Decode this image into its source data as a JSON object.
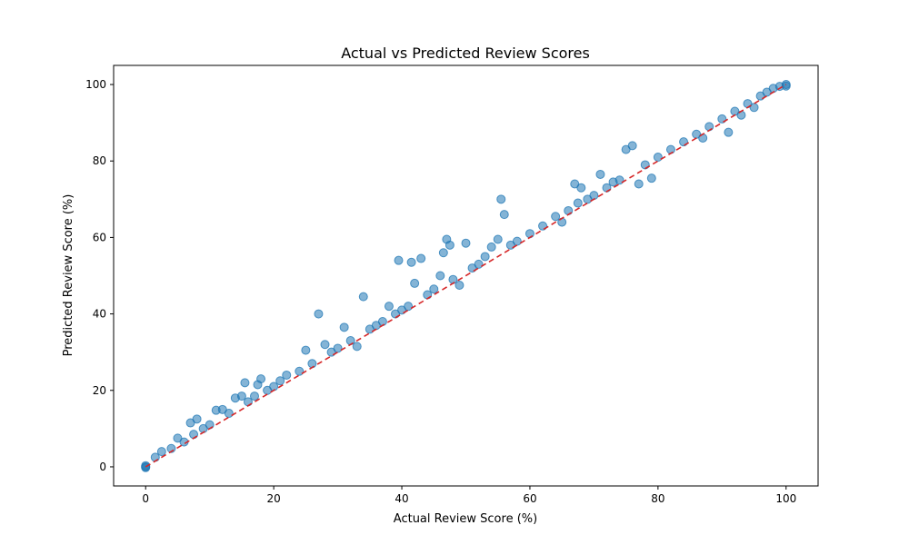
{
  "chart_data": {
    "type": "scatter",
    "title": "Actual vs Predicted Review Scores",
    "xlabel": "Actual Review Score (%)",
    "ylabel": "Predicted Review Score (%)",
    "xlim": [
      -5,
      105
    ],
    "ylim": [
      -5,
      105
    ],
    "xticks": [
      0,
      20,
      40,
      60,
      80,
      100
    ],
    "yticks": [
      0,
      20,
      40,
      60,
      80,
      100
    ],
    "grid": false,
    "legend": "none",
    "colors": {
      "points": "#1f77b4",
      "reference_line": "#d62728"
    },
    "reference_line": {
      "style": "dashed",
      "from": [
        0,
        0
      ],
      "to": [
        100,
        100
      ]
    },
    "series": [
      {
        "points": [
          [
            0,
            0
          ],
          [
            0,
            0.3
          ],
          [
            0,
            -0.2
          ],
          [
            1.5,
            2.5
          ],
          [
            2.5,
            4.0
          ],
          [
            4.0,
            4.8
          ],
          [
            5.0,
            7.5
          ],
          [
            6.0,
            6.5
          ],
          [
            7.0,
            11.5
          ],
          [
            7.5,
            8.5
          ],
          [
            8.0,
            12.5
          ],
          [
            9.0,
            10.0
          ],
          [
            10.0,
            11.0
          ],
          [
            11.0,
            14.8
          ],
          [
            12.0,
            15.0
          ],
          [
            13.0,
            14.0
          ],
          [
            14.0,
            18.0
          ],
          [
            15.0,
            18.5
          ],
          [
            15.5,
            22.0
          ],
          [
            16.0,
            17.0
          ],
          [
            17.0,
            18.5
          ],
          [
            17.5,
            21.5
          ],
          [
            18.0,
            23.0
          ],
          [
            19.0,
            20.0
          ],
          [
            20.0,
            21.0
          ],
          [
            21.0,
            22.5
          ],
          [
            22.0,
            24.0
          ],
          [
            24.0,
            25.0
          ],
          [
            25.0,
            30.5
          ],
          [
            26.0,
            27.0
          ],
          [
            27.0,
            40.0
          ],
          [
            28.0,
            32.0
          ],
          [
            29.0,
            30.0
          ],
          [
            30.0,
            31.0
          ],
          [
            31.0,
            36.5
          ],
          [
            32.0,
            33.0
          ],
          [
            33.0,
            31.5
          ],
          [
            34.0,
            44.5
          ],
          [
            35.0,
            36.0
          ],
          [
            36.0,
            37.0
          ],
          [
            37.0,
            38.0
          ],
          [
            38.0,
            42.0
          ],
          [
            39.0,
            40.0
          ],
          [
            39.5,
            54.0
          ],
          [
            40.0,
            41.0
          ],
          [
            41.0,
            42.0
          ],
          [
            41.5,
            53.5
          ],
          [
            42.0,
            48.0
          ],
          [
            43.0,
            54.5
          ],
          [
            44.0,
            45.0
          ],
          [
            45.0,
            46.5
          ],
          [
            46.0,
            50.0
          ],
          [
            46.5,
            56.0
          ],
          [
            47.0,
            59.5
          ],
          [
            47.5,
            58.0
          ],
          [
            48.0,
            49.0
          ],
          [
            49.0,
            47.5
          ],
          [
            50.0,
            58.5
          ],
          [
            51.0,
            52.0
          ],
          [
            52.0,
            53.0
          ],
          [
            53.0,
            55.0
          ],
          [
            54.0,
            57.5
          ],
          [
            55.0,
            59.5
          ],
          [
            55.5,
            70.0
          ],
          [
            56.0,
            66.0
          ],
          [
            57.0,
            58.0
          ],
          [
            58.0,
            59.0
          ],
          [
            60.0,
            61.0
          ],
          [
            62.0,
            63.0
          ],
          [
            64.0,
            65.5
          ],
          [
            65.0,
            64.0
          ],
          [
            66.0,
            67.0
          ],
          [
            67.0,
            74.0
          ],
          [
            67.5,
            69.0
          ],
          [
            68.0,
            73.0
          ],
          [
            69.0,
            70.0
          ],
          [
            70.0,
            71.0
          ],
          [
            71.0,
            76.5
          ],
          [
            72.0,
            73.0
          ],
          [
            73.0,
            74.5
          ],
          [
            74.0,
            75.0
          ],
          [
            75.0,
            83.0
          ],
          [
            76.0,
            84.0
          ],
          [
            77.0,
            74.0
          ],
          [
            78.0,
            79.0
          ],
          [
            79.0,
            75.5
          ],
          [
            80.0,
            81.0
          ],
          [
            82.0,
            83.0
          ],
          [
            84.0,
            85.0
          ],
          [
            86.0,
            87.0
          ],
          [
            87.0,
            86.0
          ],
          [
            88.0,
            89.0
          ],
          [
            90.0,
            91.0
          ],
          [
            91.0,
            87.5
          ],
          [
            92.0,
            93.0
          ],
          [
            93.0,
            92.0
          ],
          [
            94.0,
            95.0
          ],
          [
            95.0,
            94.0
          ],
          [
            96.0,
            97.0
          ],
          [
            97.0,
            98.0
          ],
          [
            98.0,
            99.0
          ],
          [
            99.0,
            99.5
          ],
          [
            100.0,
            100.0
          ],
          [
            100.0,
            99.6
          ]
        ]
      }
    ]
  }
}
